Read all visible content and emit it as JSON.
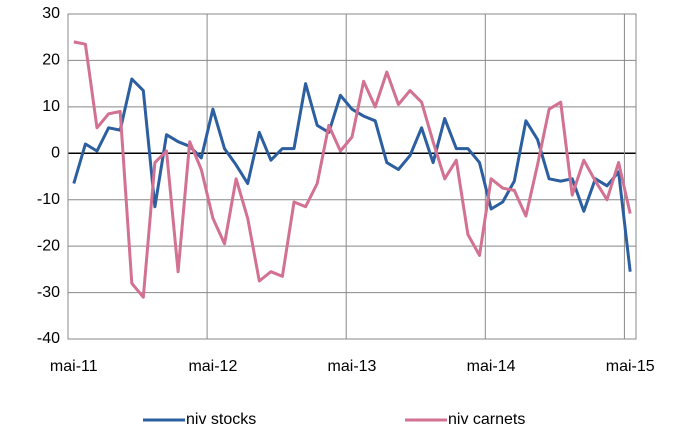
{
  "chart_data": {
    "type": "line",
    "categories": [
      "mai-11",
      null,
      null,
      null,
      null,
      null,
      null,
      null,
      null,
      null,
      null,
      null,
      "mai-12",
      null,
      null,
      null,
      null,
      null,
      null,
      null,
      null,
      null,
      null,
      null,
      "mai-13",
      null,
      null,
      null,
      null,
      null,
      null,
      null,
      null,
      null,
      null,
      null,
      "mai-14",
      null,
      null,
      null,
      null,
      null,
      null,
      null,
      null,
      null,
      null,
      null,
      "mai-15"
    ],
    "series": [
      {
        "name": "niv stocks",
        "color": "#2b5fa0",
        "values": [
          -6.5,
          2,
          0.5,
          5.5,
          5,
          16,
          13.5,
          -11.5,
          4,
          2.5,
          1.5,
          -1,
          9.5,
          1,
          -2.5,
          -6.5,
          4.5,
          -1.5,
          1,
          1,
          15,
          6,
          4.5,
          12.5,
          9.5,
          8,
          7,
          -2,
          -3.5,
          -0.5,
          5.5,
          -2,
          7.5,
          1,
          1,
          -2,
          -12,
          -10.5,
          -6,
          7,
          3,
          -5.5,
          -6,
          -5.5,
          -12.5,
          -5.5,
          -7,
          -4,
          -25.5
        ]
      },
      {
        "name": "niv carnets",
        "color": "#d27191",
        "values": [
          24,
          23.5,
          5.5,
          8.5,
          9,
          -28,
          -31,
          -2,
          0.5,
          -25.5,
          2.5,
          -3.5,
          -14,
          -19.5,
          -5.5,
          -14,
          -27.5,
          -25.5,
          -26.5,
          -10.5,
          -11.5,
          -6.5,
          6,
          0.5,
          3.5,
          15.5,
          10,
          17.5,
          10.5,
          13.5,
          11,
          2.5,
          -5.5,
          -1.5,
          -17.5,
          -22,
          -5.5,
          -7.5,
          -8,
          -13.5,
          -2.5,
          9.5,
          11,
          -9,
          -1.5,
          -6,
          -10,
          -2,
          -13
        ]
      }
    ],
    "ylim": [
      -40,
      30
    ],
    "yticks": [
      -40,
      -30,
      -20,
      -10,
      0,
      10,
      20,
      30
    ],
    "grid": true,
    "legend": "bottom"
  }
}
